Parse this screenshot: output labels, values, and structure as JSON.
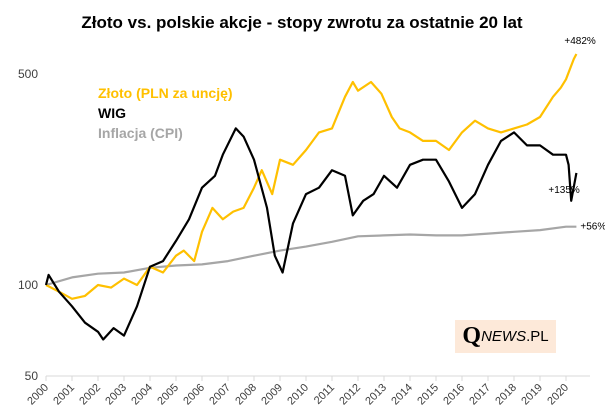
{
  "chart_data": {
    "type": "line",
    "title": "Złoto vs. polskie akcje - stopy zwrotu za ostatnie 20 lat",
    "xlabel": "",
    "ylabel": "",
    "y_scale": "log",
    "ylim": [
      50,
      700
    ],
    "y_ticks": [
      "50",
      "100",
      "500"
    ],
    "y_tick_values": [
      50,
      100,
      500
    ],
    "x_ticks": [
      "2000",
      "2001",
      "2002",
      "2003",
      "2004",
      "2005",
      "2006",
      "2007",
      "2008",
      "2009",
      "2010",
      "2011",
      "2012",
      "2013",
      "2014",
      "2015",
      "2016",
      "2017",
      "2018",
      "2019",
      "2020"
    ],
    "grid": false,
    "legend_placement": "top-left",
    "series": [
      {
        "name": "Złoto (PLN za uncję)",
        "color": "#FFC000",
        "end_label": "+482%",
        "x": [
          2000,
          2000.5,
          2001,
          2001.5,
          2002,
          2002.5,
          2003,
          2003.5,
          2004,
          2004.5,
          2005,
          2005.3,
          2005.7,
          2006,
          2006.4,
          2006.8,
          2007.2,
          2007.6,
          2008,
          2008.3,
          2008.7,
          2009,
          2009.5,
          2010,
          2010.5,
          2011,
          2011.5,
          2011.8,
          2012,
          2012.5,
          2012.9,
          2013.3,
          2013.6,
          2014,
          2014.5,
          2015,
          2015.5,
          2016,
          2016.5,
          2017,
          2017.5,
          2018,
          2018.5,
          2019,
          2019.5,
          2019.8,
          2020,
          2020.3,
          2020.4
        ],
        "y": [
          100,
          95,
          90,
          92,
          100,
          98,
          105,
          100,
          115,
          110,
          125,
          130,
          120,
          150,
          180,
          165,
          175,
          180,
          210,
          240,
          200,
          260,
          250,
          280,
          320,
          330,
          420,
          470,
          440,
          470,
          430,
          360,
          330,
          320,
          300,
          300,
          280,
          320,
          350,
          330,
          320,
          330,
          340,
          360,
          420,
          450,
          480,
          560,
          582
        ]
      },
      {
        "name": "WIG",
        "color": "#000000",
        "end_label": "+135%",
        "x": [
          2000,
          2000.1,
          2000.5,
          2001,
          2001.5,
          2002,
          2002.2,
          2002.6,
          2003,
          2003.5,
          2004,
          2004.5,
          2005,
          2005.5,
          2006,
          2006.5,
          2006.8,
          2007.3,
          2007.6,
          2008,
          2008.5,
          2008.8,
          2009.1,
          2009.5,
          2010,
          2010.5,
          2011,
          2011.5,
          2011.8,
          2012.2,
          2012.6,
          2013,
          2013.5,
          2014,
          2014.5,
          2015,
          2015.5,
          2016,
          2016.5,
          2017,
          2017.5,
          2018,
          2018.5,
          2019,
          2019.5,
          2020,
          2020.1,
          2020.2,
          2020.4
        ],
        "y": [
          100,
          108,
          95,
          85,
          75,
          70,
          66,
          72,
          68,
          85,
          115,
          120,
          140,
          165,
          210,
          230,
          270,
          330,
          310,
          260,
          180,
          125,
          110,
          160,
          200,
          210,
          240,
          230,
          170,
          190,
          200,
          230,
          210,
          250,
          260,
          260,
          220,
          180,
          200,
          250,
          300,
          320,
          290,
          290,
          270,
          270,
          250,
          190,
          235
        ]
      },
      {
        "name": "Inflacja (CPI)",
        "color": "#A6A6A6",
        "end_label": "+56%",
        "x": [
          2000,
          2001,
          2002,
          2003,
          2004,
          2005,
          2006,
          2007,
          2008,
          2009,
          2010,
          2011,
          2012,
          2013,
          2014,
          2015,
          2016,
          2017,
          2018,
          2019,
          2020,
          2020.4
        ],
        "y": [
          100,
          106,
          109,
          110,
          114,
          116,
          117,
          120,
          125,
          130,
          134,
          139,
          145,
          146,
          147,
          146,
          146,
          148,
          150,
          152,
          156,
          156
        ]
      }
    ]
  },
  "logo": {
    "q": "Q",
    "news": "NEWS",
    "pl": ".PL"
  }
}
